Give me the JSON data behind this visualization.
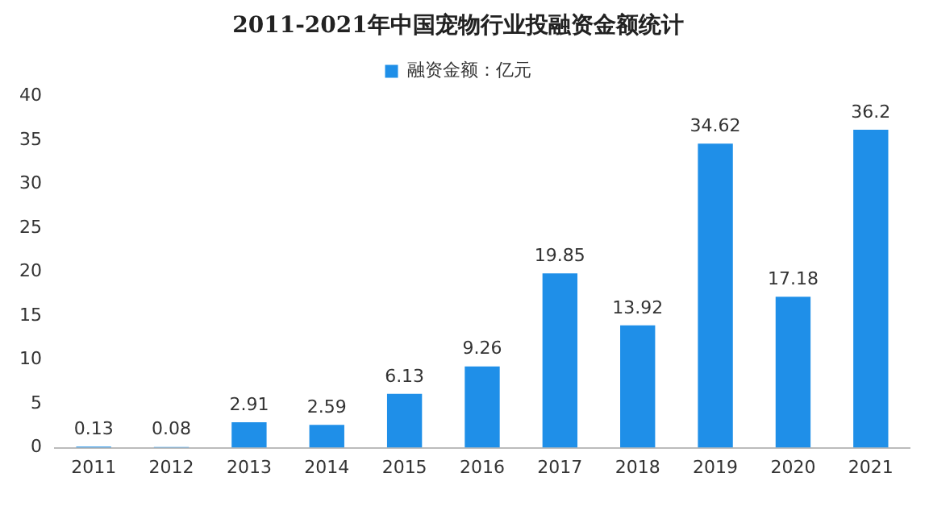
{
  "chart_data": {
    "type": "bar",
    "title": "2011-2021年中国宠物行业投融资金额统计",
    "categories": [
      "2011",
      "2012",
      "2013",
      "2014",
      "2015",
      "2016",
      "2017",
      "2018",
      "2019",
      "2020",
      "2021"
    ],
    "series": [
      {
        "name": "融资金额：亿元",
        "color": "#1f8fe8",
        "values": [
          0.13,
          0.08,
          2.91,
          2.59,
          6.13,
          9.26,
          19.85,
          13.92,
          34.62,
          17.18,
          36.2
        ]
      }
    ],
    "ylim": [
      0,
      40
    ],
    "yticks": [
      0,
      5,
      10,
      15,
      20,
      25,
      30,
      35,
      40
    ],
    "grid": false,
    "legend": "top",
    "data_labels": true
  }
}
